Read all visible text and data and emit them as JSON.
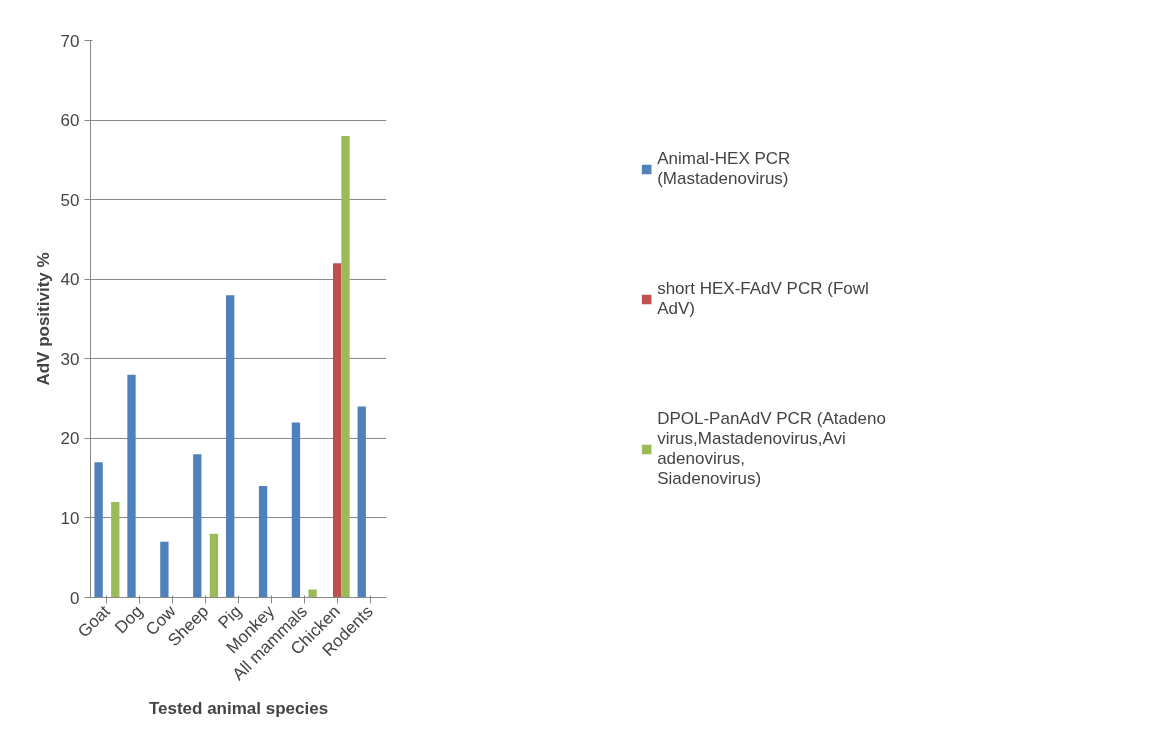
{
  "chart_data": {
    "type": "bar",
    "xlabel": "Tested animal species",
    "ylabel": "AdV positivity %",
    "categories": [
      "Goat",
      "Dog",
      "Cow",
      "Sheep",
      "Pig",
      "Monkey",
      "All mammals",
      "Chicken",
      "Rodents"
    ],
    "series": [
      {
        "name": "Animal-HEX PCR (Mastadenovirus)",
        "color": "#4f81bd",
        "values": [
          17,
          28,
          7,
          18,
          38,
          14,
          22,
          null,
          24
        ]
      },
      {
        "name": "short HEX-FAdV PCR (Fowl AdV)",
        "color": "#c0504d",
        "values": [
          null,
          null,
          null,
          null,
          null,
          null,
          null,
          42,
          null
        ]
      },
      {
        "name": "DPOL-PanAdV PCR (Atadenovirus,Mastadenovirus,Aviadenovirus, Siadenovirus)",
        "color": "#9bbb59",
        "values": [
          12,
          null,
          null,
          8,
          null,
          null,
          1,
          58,
          null
        ]
      }
    ],
    "ylim": [
      0,
      70
    ],
    "yticks": [
      0,
      10,
      20,
      30,
      40,
      50,
      60,
      70
    ],
    "grid": "y",
    "legend": "right"
  }
}
